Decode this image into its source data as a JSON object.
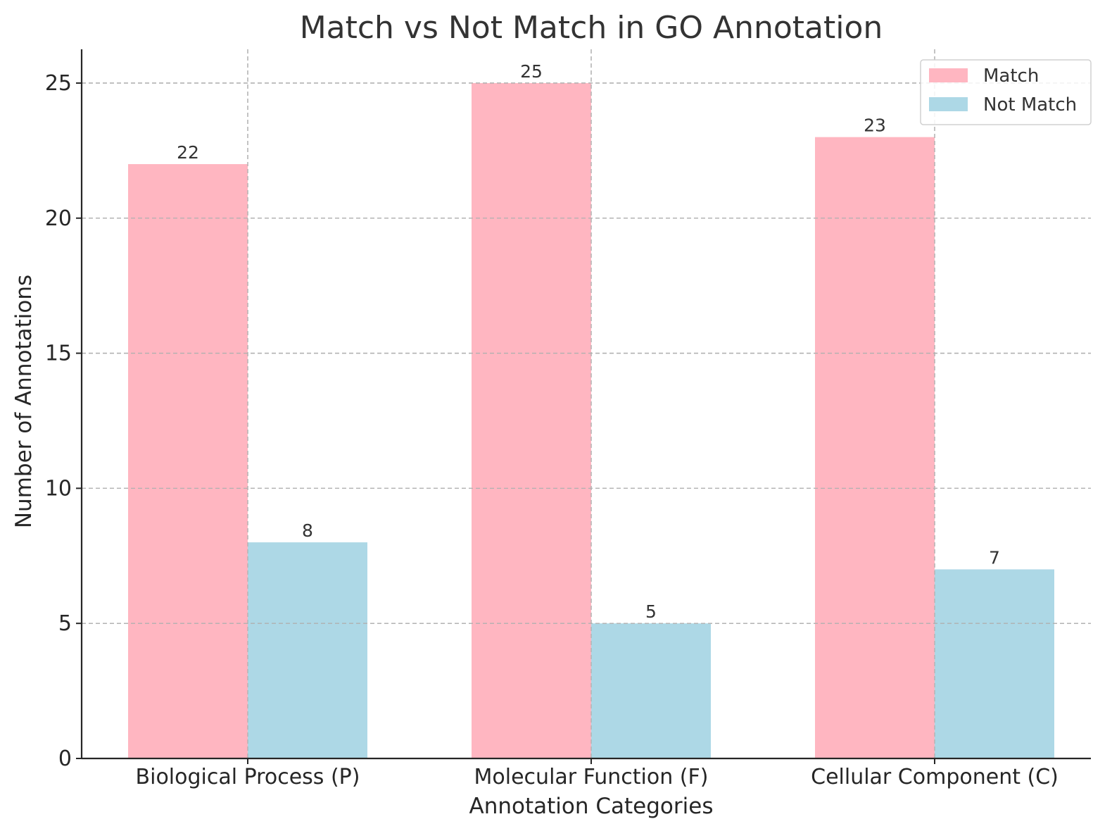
{
  "chart_data": {
    "type": "bar",
    "title": "Match vs Not Match in GO Annotation",
    "xlabel": "Annotation Categories",
    "ylabel": "Number of Annotations",
    "categories": [
      "Biological Process (P)",
      "Molecular Function (F)",
      "Cellular Component (C)"
    ],
    "series": [
      {
        "name": "Match",
        "values": [
          22,
          25,
          23
        ],
        "color": "#ffb6c1"
      },
      {
        "name": "Not Match",
        "values": [
          8,
          5,
          7
        ],
        "color": "#add8e6"
      }
    ],
    "ylim": [
      0,
      26.25
    ],
    "yticks": [
      0,
      5,
      10,
      15,
      20,
      25
    ],
    "grid": true,
    "legend_position": "top-right"
  }
}
